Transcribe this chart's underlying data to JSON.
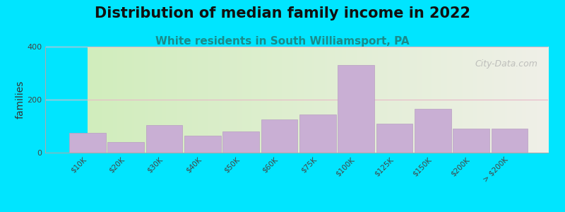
{
  "title": "Distribution of median family income in 2022",
  "subtitle": "White residents in South Williamsport, PA",
  "xlabel": "",
  "ylabel": "families",
  "categories": [
    "$10K",
    "$20K",
    "$30K",
    "$40K",
    "$50K",
    "$60K",
    "$75K",
    "$100K",
    "$125K",
    "$150K",
    "$200K",
    "> $200K"
  ],
  "values": [
    75,
    40,
    105,
    65,
    80,
    125,
    145,
    330,
    110,
    165,
    90,
    90
  ],
  "bar_color": "#c9afd4",
  "bar_edgecolor": "#b89fc2",
  "background_outer": "#00e5ff",
  "background_plot_left": "#d4edbc",
  "background_plot_right": "#f0f0e8",
  "ylim": [
    0,
    400
  ],
  "yticks": [
    0,
    200,
    400
  ],
  "grid_color": "#e8b8c8",
  "title_fontsize": 15,
  "subtitle_fontsize": 11,
  "ylabel_fontsize": 10,
  "watermark": "City-Data.com"
}
